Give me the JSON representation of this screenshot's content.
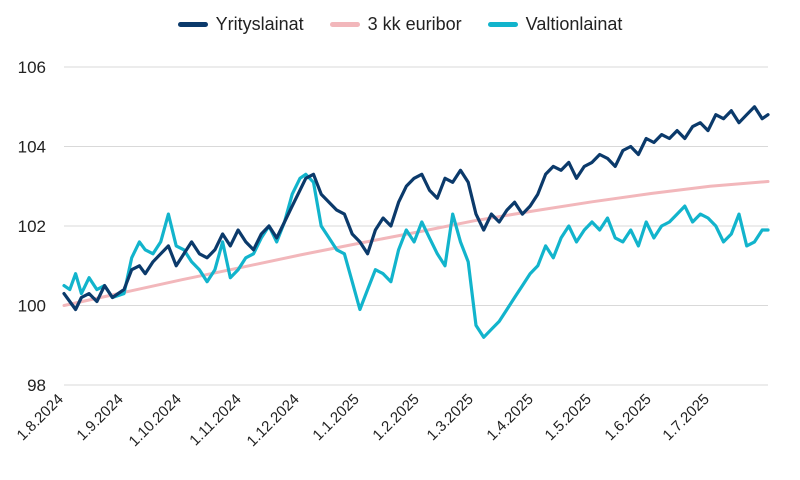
{
  "chart_data": {
    "type": "line",
    "title": "",
    "xlabel": "",
    "ylabel": "",
    "ylim": [
      98,
      106
    ],
    "yticks": [
      98,
      100,
      102,
      104,
      106
    ],
    "xlim": [
      "2024-08-01",
      "2025-07-31"
    ],
    "xticks": [
      "1.8.2024",
      "1.9.2024",
      "1.10.2024",
      "1.11.2024",
      "1.12.2024",
      "1.1.2025",
      "1.2.2025",
      "1.3.2025",
      "1.4.2025",
      "1.5.2025",
      "1.6.2025",
      "1.7.2025"
    ],
    "grid": "horizontal",
    "legend_position": "top",
    "series": [
      {
        "name": "Yrityslainat",
        "color": "#0b3a6b",
        "x": [
          "2024-08-01",
          "2024-08-04",
          "2024-08-07",
          "2024-08-10",
          "2024-08-14",
          "2024-08-18",
          "2024-08-22",
          "2024-08-26",
          "2024-09-01",
          "2024-09-05",
          "2024-09-09",
          "2024-09-12",
          "2024-09-16",
          "2024-09-20",
          "2024-09-24",
          "2024-09-28",
          "2024-10-02",
          "2024-10-06",
          "2024-10-10",
          "2024-10-14",
          "2024-10-18",
          "2024-10-22",
          "2024-10-26",
          "2024-10-30",
          "2024-11-03",
          "2024-11-07",
          "2024-11-11",
          "2024-11-15",
          "2024-11-19",
          "2024-11-23",
          "2024-11-27",
          "2024-12-01",
          "2024-12-04",
          "2024-12-08",
          "2024-12-12",
          "2024-12-16",
          "2024-12-20",
          "2024-12-24",
          "2024-12-28",
          "2025-01-01",
          "2025-01-05",
          "2025-01-09",
          "2025-01-13",
          "2025-01-17",
          "2025-01-21",
          "2025-01-25",
          "2025-01-29",
          "2025-02-02",
          "2025-02-06",
          "2025-02-10",
          "2025-02-14",
          "2025-02-18",
          "2025-02-22",
          "2025-02-26",
          "2025-03-02",
          "2025-03-06",
          "2025-03-10",
          "2025-03-14",
          "2025-03-18",
          "2025-03-22",
          "2025-03-26",
          "2025-03-30",
          "2025-04-03",
          "2025-04-07",
          "2025-04-11",
          "2025-04-15",
          "2025-04-19",
          "2025-04-23",
          "2025-04-27",
          "2025-05-01",
          "2025-05-05",
          "2025-05-09",
          "2025-05-13",
          "2025-05-17",
          "2025-05-21",
          "2025-05-25",
          "2025-05-29",
          "2025-06-02",
          "2025-06-06",
          "2025-06-10",
          "2025-06-14",
          "2025-06-18",
          "2025-06-22",
          "2025-06-26",
          "2025-06-30",
          "2025-07-04",
          "2025-07-08",
          "2025-07-12",
          "2025-07-16",
          "2025-07-20",
          "2025-07-24",
          "2025-07-28",
          "2025-07-31"
        ],
        "y": [
          100.3,
          100.1,
          99.9,
          100.2,
          100.3,
          100.1,
          100.5,
          100.2,
          100.4,
          100.9,
          101.0,
          100.8,
          101.1,
          101.3,
          101.5,
          101.0,
          101.3,
          101.6,
          101.3,
          101.2,
          101.4,
          101.8,
          101.5,
          101.9,
          101.6,
          101.4,
          101.8,
          102.0,
          101.7,
          102.1,
          102.5,
          102.9,
          103.2,
          103.3,
          102.8,
          102.6,
          102.4,
          102.3,
          101.8,
          101.6,
          101.3,
          101.9,
          102.2,
          102.0,
          102.6,
          103.0,
          103.2,
          103.3,
          102.9,
          102.7,
          103.2,
          103.1,
          103.4,
          103.1,
          102.3,
          101.9,
          102.3,
          102.1,
          102.4,
          102.6,
          102.3,
          102.5,
          102.8,
          103.3,
          103.5,
          103.4,
          103.6,
          103.2,
          103.5,
          103.6,
          103.8,
          103.7,
          103.5,
          103.9,
          104.0,
          103.8,
          104.2,
          104.1,
          104.3,
          104.2,
          104.4,
          104.2,
          104.5,
          104.6,
          104.4,
          104.8,
          104.7,
          104.9,
          104.6,
          104.8,
          105.0,
          104.7,
          104.8
        ]
      },
      {
        "name": "3 kk euribor",
        "color": "#f2b7bb",
        "x": [
          "2024-08-01",
          "2024-09-01",
          "2024-10-01",
          "2024-11-01",
          "2024-12-01",
          "2025-01-01",
          "2025-02-01",
          "2025-03-01",
          "2025-04-01",
          "2025-05-01",
          "2025-06-01",
          "2025-07-01",
          "2025-07-31"
        ],
        "y": [
          100.0,
          100.33,
          100.65,
          100.96,
          101.27,
          101.57,
          101.86,
          102.13,
          102.38,
          102.61,
          102.82,
          103.0,
          103.12
        ]
      },
      {
        "name": "Valtionlainat",
        "color": "#12b4cc",
        "x": [
          "2024-08-01",
          "2024-08-04",
          "2024-08-07",
          "2024-08-10",
          "2024-08-14",
          "2024-08-18",
          "2024-08-22",
          "2024-08-26",
          "2024-09-01",
          "2024-09-05",
          "2024-09-09",
          "2024-09-12",
          "2024-09-16",
          "2024-09-20",
          "2024-09-24",
          "2024-09-28",
          "2024-10-02",
          "2024-10-06",
          "2024-10-10",
          "2024-10-14",
          "2024-10-18",
          "2024-10-22",
          "2024-10-26",
          "2024-10-30",
          "2024-11-03",
          "2024-11-07",
          "2024-11-11",
          "2024-11-15",
          "2024-11-19",
          "2024-11-23",
          "2024-11-27",
          "2024-12-01",
          "2024-12-04",
          "2024-12-08",
          "2024-12-12",
          "2024-12-16",
          "2024-12-20",
          "2024-12-24",
          "2024-12-28",
          "2025-01-01",
          "2025-01-05",
          "2025-01-09",
          "2025-01-13",
          "2025-01-17",
          "2025-01-21",
          "2025-01-25",
          "2025-01-29",
          "2025-02-02",
          "2025-02-06",
          "2025-02-10",
          "2025-02-14",
          "2025-02-18",
          "2025-02-22",
          "2025-02-26",
          "2025-03-02",
          "2025-03-06",
          "2025-03-10",
          "2025-03-14",
          "2025-03-18",
          "2025-03-22",
          "2025-03-26",
          "2025-03-30",
          "2025-04-03",
          "2025-04-07",
          "2025-04-11",
          "2025-04-15",
          "2025-04-19",
          "2025-04-23",
          "2025-04-27",
          "2025-05-01",
          "2025-05-05",
          "2025-05-09",
          "2025-05-13",
          "2025-05-17",
          "2025-05-21",
          "2025-05-25",
          "2025-05-29",
          "2025-06-02",
          "2025-06-06",
          "2025-06-10",
          "2025-06-14",
          "2025-06-18",
          "2025-06-22",
          "2025-06-26",
          "2025-06-30",
          "2025-07-04",
          "2025-07-08",
          "2025-07-12",
          "2025-07-16",
          "2025-07-20",
          "2025-07-24",
          "2025-07-28",
          "2025-07-31"
        ],
        "y": [
          100.5,
          100.4,
          100.8,
          100.3,
          100.7,
          100.4,
          100.5,
          100.2,
          100.3,
          101.2,
          101.6,
          101.4,
          101.3,
          101.6,
          102.3,
          101.5,
          101.4,
          101.1,
          100.9,
          100.6,
          100.9,
          101.6,
          100.7,
          100.9,
          101.2,
          101.3,
          101.7,
          102.0,
          101.6,
          102.1,
          102.8,
          103.2,
          103.3,
          103.1,
          102.0,
          101.7,
          101.4,
          101.3,
          100.6,
          99.9,
          100.4,
          100.9,
          100.8,
          100.6,
          101.4,
          101.9,
          101.6,
          102.1,
          101.7,
          101.3,
          101.0,
          102.3,
          101.6,
          101.1,
          99.5,
          99.2,
          99.4,
          99.6,
          99.9,
          100.2,
          100.5,
          100.8,
          101.0,
          101.5,
          101.2,
          101.7,
          102.0,
          101.6,
          101.9,
          102.1,
          101.9,
          102.2,
          101.7,
          101.6,
          101.9,
          101.5,
          102.1,
          101.7,
          102.0,
          102.1,
          102.3,
          102.5,
          102.1,
          102.3,
          102.2,
          102.0,
          101.6,
          101.8,
          102.3,
          101.5,
          101.6,
          101.9,
          101.9
        ]
      }
    ]
  }
}
